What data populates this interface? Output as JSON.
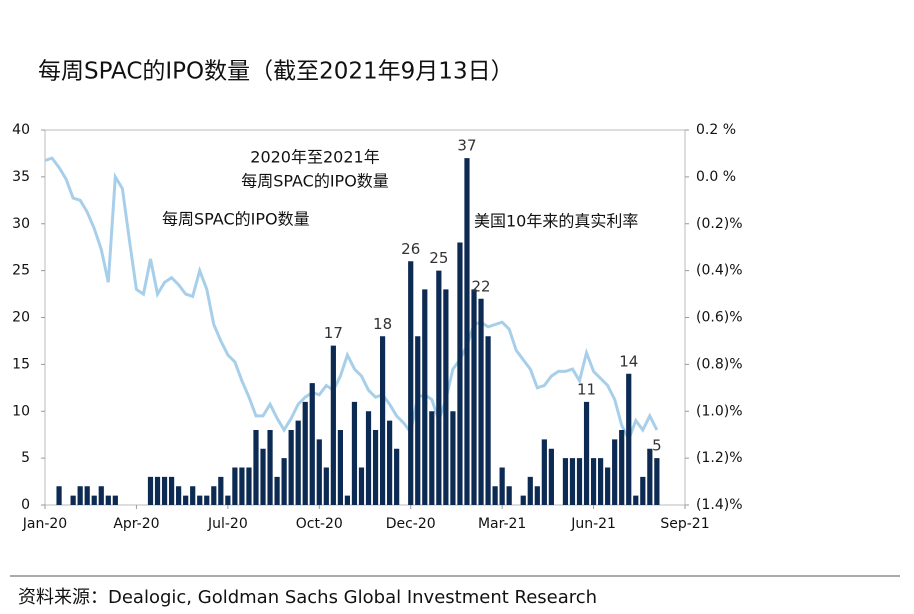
{
  "chart_data": {
    "type": "bar-line",
    "title": "每周SPAC的IPO数量（截至2021年9月13日）",
    "annotations": [
      "2020年至2021年",
      "每周SPAC的IPO数量"
    ],
    "source": "资料来源：Dealogic, Goldman Sachs Global Investment Research",
    "categories": [
      "Jan-20",
      null,
      null,
      null,
      null,
      null,
      null,
      null,
      null,
      null,
      null,
      null,
      null,
      "Apr-20",
      null,
      null,
      null,
      null,
      null,
      null,
      null,
      null,
      null,
      null,
      null,
      null,
      "Jul-20",
      null,
      null,
      null,
      null,
      null,
      null,
      null,
      null,
      null,
      null,
      null,
      null,
      "Oct-20",
      null,
      null,
      null,
      null,
      null,
      null,
      null,
      null,
      null,
      null,
      null,
      null,
      "Dec-20",
      null,
      null,
      null,
      null,
      null,
      null,
      null,
      null,
      null,
      null,
      null,
      null,
      "Mar-21",
      null,
      null,
      null,
      null,
      null,
      null,
      null,
      null,
      null,
      null,
      null,
      null,
      "Jun-21",
      null,
      null,
      null,
      null,
      null,
      null,
      null,
      null,
      null,
      null,
      null,
      null,
      "Sep-21"
    ],
    "series": [
      {
        "name": "每周SPAC的IPO数量",
        "color": "#0d2a52",
        "values": [
          0,
          0,
          2,
          0,
          1,
          2,
          2,
          1,
          2,
          1,
          1,
          0,
          0,
          0,
          0,
          3,
          3,
          3,
          3,
          2,
          1,
          2,
          1,
          1,
          2,
          3,
          1,
          4,
          4,
          4,
          8,
          6,
          8,
          3,
          5,
          8,
          9,
          11,
          13,
          7,
          4,
          17,
          8,
          1,
          11,
          4,
          10,
          8,
          18,
          9,
          6,
          0,
          26,
          18,
          23,
          10,
          25,
          23,
          10,
          28,
          37,
          23,
          22,
          18,
          2,
          4,
          2,
          0,
          1,
          3,
          2,
          7,
          6,
          0,
          5,
          5,
          5,
          11,
          5,
          5,
          4,
          7,
          8,
          14,
          1,
          3,
          6,
          5,
          null,
          null,
          null,
          null
        ],
        "value_labels": [
          null,
          null,
          null,
          null,
          null,
          null,
          null,
          null,
          null,
          null,
          null,
          null,
          null,
          null,
          null,
          null,
          null,
          null,
          null,
          null,
          null,
          null,
          null,
          null,
          null,
          null,
          null,
          null,
          null,
          null,
          null,
          null,
          null,
          null,
          null,
          null,
          null,
          null,
          null,
          null,
          null,
          "17",
          null,
          null,
          null,
          null,
          null,
          null,
          "18",
          null,
          null,
          null,
          "26",
          null,
          null,
          null,
          "25",
          null,
          null,
          null,
          "37",
          null,
          "22",
          null,
          null,
          null,
          null,
          null,
          null,
          null,
          null,
          null,
          null,
          null,
          null,
          null,
          null,
          "11",
          null,
          null,
          null,
          null,
          null,
          "14",
          null,
          null,
          null,
          "5",
          null,
          null,
          null,
          null
        ]
      },
      {
        "name": "美国10年来的真实利率",
        "color": "#a8cfea",
        "axis": "y2",
        "values": [
          0.07,
          0.08,
          0.04,
          -0.01,
          -0.09,
          -0.1,
          -0.15,
          -0.22,
          -0.31,
          -0.45,
          0.0,
          -0.05,
          -0.27,
          -0.48,
          -0.5,
          -0.35,
          -0.5,
          -0.45,
          -0.43,
          -0.46,
          -0.5,
          -0.51,
          -0.4,
          -0.48,
          -0.63,
          -0.7,
          -0.76,
          -0.79,
          -0.87,
          -0.94,
          -1.02,
          -1.02,
          -0.97,
          -1.03,
          -1.08,
          -1.03,
          -0.97,
          -0.94,
          -0.92,
          -0.93,
          -0.89,
          -0.91,
          -0.85,
          -0.76,
          -0.82,
          -0.85,
          -0.91,
          -0.94,
          -0.93,
          -0.97,
          -1.02,
          -1.05,
          -1.09,
          -0.94,
          -0.93,
          -0.95,
          -1.04,
          -0.95,
          -0.82,
          -0.78,
          -0.72,
          -0.63,
          -0.62,
          -0.64,
          -0.63,
          -0.62,
          -0.65,
          -0.74,
          -0.78,
          -0.82,
          -0.9,
          -0.89,
          -0.85,
          -0.83,
          -0.83,
          -0.82,
          -0.87,
          -0.75,
          -0.83,
          -0.86,
          -0.89,
          -0.95,
          -1.06,
          -1.12,
          -1.04,
          -1.08,
          -1.02,
          -1.08,
          null,
          null,
          null,
          null
        ]
      }
    ],
    "ylim": [
      0,
      40
    ],
    "yticks": [
      0,
      5,
      10,
      15,
      20,
      25,
      30,
      35,
      40
    ],
    "y2lim": [
      -1.4,
      0.2
    ],
    "y2ticks": [
      {
        "value": 0.2,
        "label": "0.2 %"
      },
      {
        "value": 0.0,
        "label": "0.0 %"
      },
      {
        "value": -0.2,
        "label": "(0.2)%"
      },
      {
        "value": -0.4,
        "label": "(0.4)%"
      },
      {
        "value": -0.6,
        "label": "(0.6)%"
      },
      {
        "value": -0.8,
        "label": "(0.8)%"
      },
      {
        "value": -1.0,
        "label": "(1.0)%"
      },
      {
        "value": -1.2,
        "label": "(1.2)%"
      },
      {
        "value": -1.4,
        "label": "(1.4)%"
      }
    ]
  }
}
